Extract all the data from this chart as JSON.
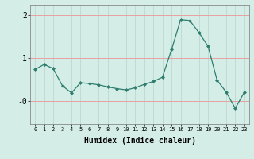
{
  "x": [
    0,
    1,
    2,
    3,
    4,
    5,
    6,
    7,
    8,
    9,
    10,
    11,
    12,
    13,
    14,
    15,
    16,
    17,
    18,
    19,
    20,
    21,
    22,
    23
  ],
  "y": [
    0.73,
    0.85,
    0.75,
    0.35,
    0.18,
    0.42,
    0.4,
    0.37,
    0.32,
    0.28,
    0.25,
    0.3,
    0.38,
    0.45,
    0.55,
    1.2,
    1.9,
    1.88,
    1.6,
    1.28,
    0.48,
    0.2,
    -0.18,
    0.2
  ],
  "line_color": "#2e7d6e",
  "marker": "D",
  "marker_size": 2,
  "bg_color": "#d4ede7",
  "grid_color_v": "#bdd8d0",
  "grid_color_h": "#e8a0a0",
  "xlabel": "Humidex (Indice chaleur)",
  "ylim": [
    -0.55,
    2.25
  ],
  "xlim": [
    -0.5,
    23.5
  ]
}
